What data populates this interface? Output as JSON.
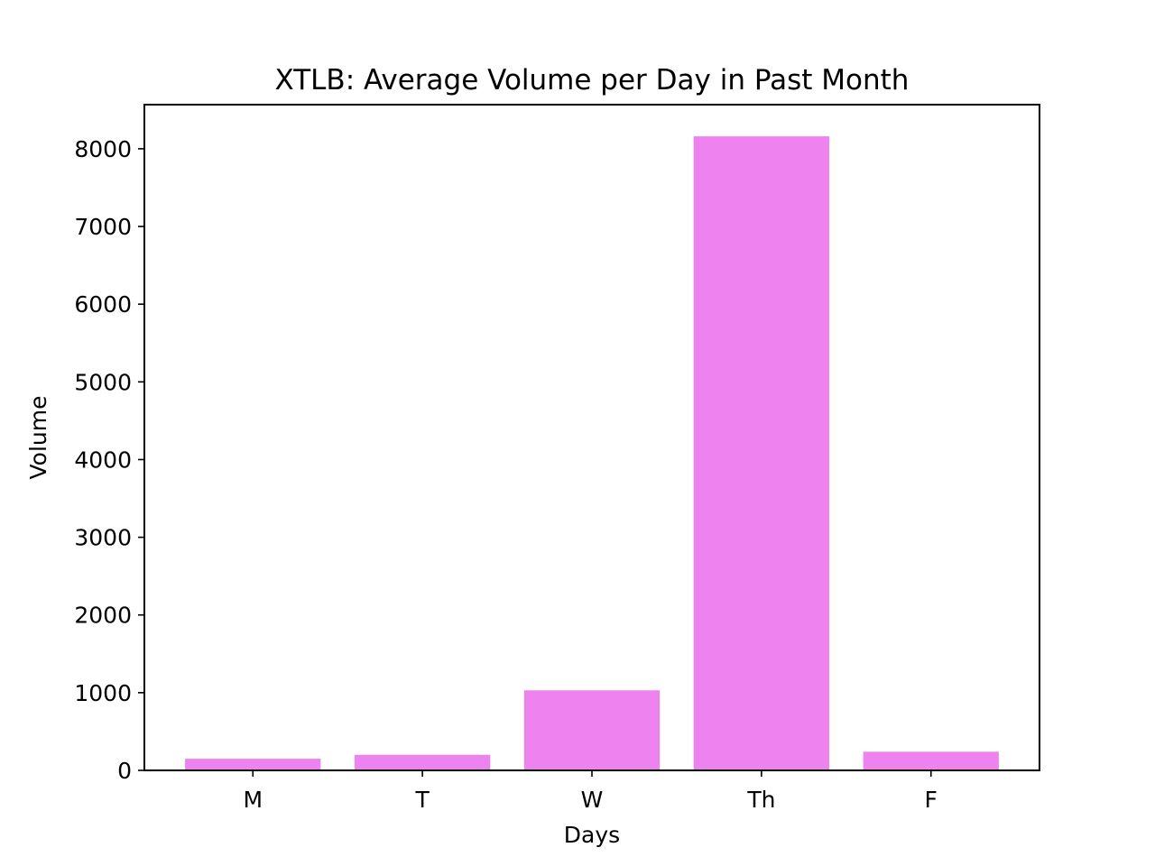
{
  "chart_data": {
    "type": "bar",
    "title": "XTLB: Average Volume per Day in Past Month",
    "xlabel": "Days",
    "ylabel": "Volume",
    "categories": [
      "M",
      "T",
      "W",
      "Th",
      "F"
    ],
    "values": [
      150,
      200,
      1030,
      8160,
      240
    ],
    "ylim": [
      0,
      8568
    ],
    "yticks": [
      0,
      1000,
      2000,
      3000,
      4000,
      5000,
      6000,
      7000,
      8000
    ],
    "ytick_labels": [
      "0",
      "1000",
      "2000",
      "3000",
      "4000",
      "5000",
      "6000",
      "7000",
      "8000"
    ],
    "grid": false,
    "legend": "none",
    "bar_color": "#ee82ee"
  }
}
